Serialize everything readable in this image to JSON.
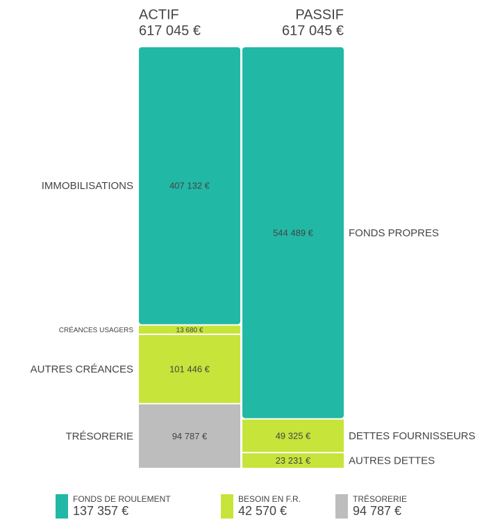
{
  "chart_data": {
    "type": "stacked_bar",
    "columns": [
      {
        "name": "ACTIF",
        "total_label": "617 045 €",
        "segments": [
          {
            "name": "IMMOBILISATIONS",
            "value": 407132,
            "value_label": "407 132 €",
            "color": "#22b8a6"
          },
          {
            "name": "CRÉANCES USAGERS",
            "value": 13680,
            "value_label": "13 680 €",
            "color": "#c7e43a"
          },
          {
            "name": "AUTRES CRÉANCES",
            "value": 101446,
            "value_label": "101 446 €",
            "color": "#c7e43a"
          },
          {
            "name": "TRÉSORERIE",
            "value": 94787,
            "value_label": "94 787 €",
            "color": "#bdbdbd"
          }
        ]
      },
      {
        "name": "PASSIF",
        "total_label": "617 045 €",
        "segments": [
          {
            "name": "FONDS PROPRES",
            "value": 544489,
            "value_label": "544 489 €",
            "color": "#22b8a6"
          },
          {
            "name": "DETTES FOURNISSEURS",
            "value": 49325,
            "value_label": "49 325 €",
            "color": "#c7e43a"
          },
          {
            "name": "AUTRES DETTES",
            "value": 23231,
            "value_label": "23 231 €",
            "color": "#c7e43a"
          }
        ]
      }
    ],
    "legend": [
      {
        "name": "FONDS DE ROULEMENT",
        "value_label": "137 357 €",
        "color": "#22b8a6"
      },
      {
        "name": "BESOIN EN F.R.",
        "value_label": "42 570 €",
        "color": "#c7e43a"
      },
      {
        "name": "TRÉSORERIE",
        "value_label": "94 787 €",
        "color": "#bdbdbd"
      }
    ]
  }
}
